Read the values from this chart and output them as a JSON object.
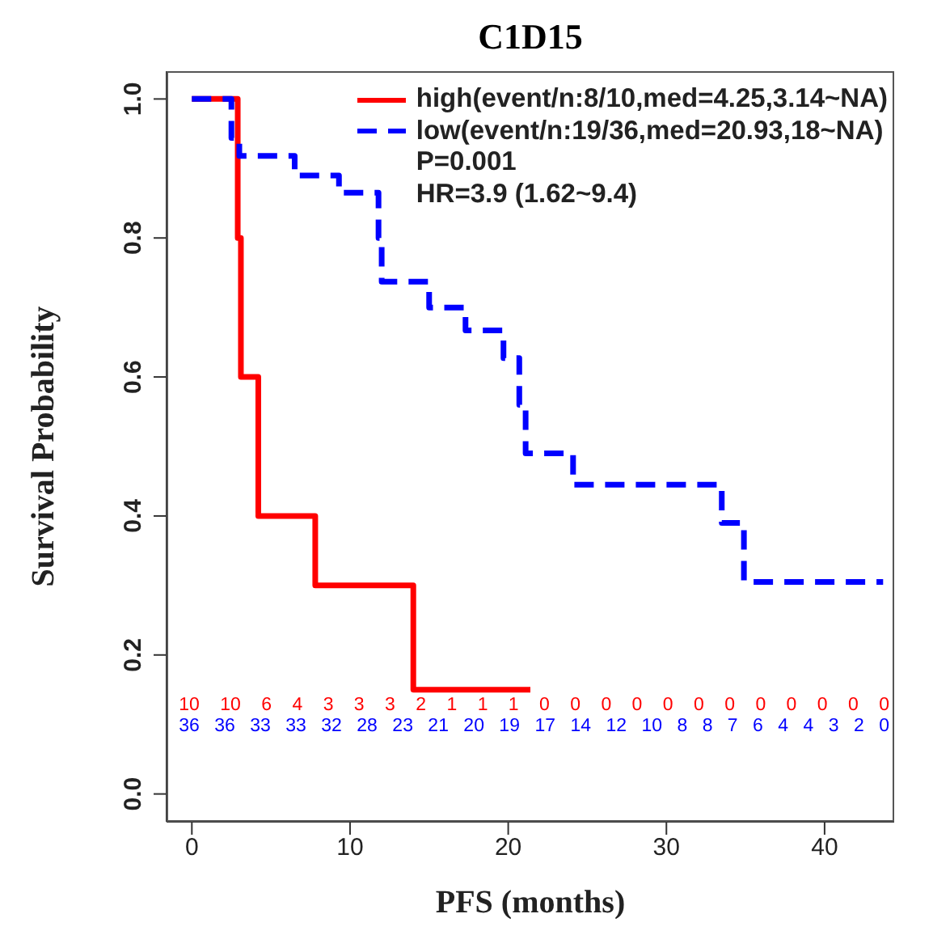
{
  "chart_data": {
    "type": "step",
    "title": "C1D15",
    "xlabel": "PFS (months)",
    "ylabel": "Survival Probability",
    "xlim": [
      -1.6,
      44.4
    ],
    "ylim": [
      -0.04,
      1.04
    ],
    "xticks": [
      0,
      10,
      20,
      30,
      40
    ],
    "yticks": [
      {
        "value": 0,
        "label": "0.0"
      },
      0.2,
      0.4,
      0.6,
      0.8,
      {
        "value": 1,
        "label": "1.0"
      }
    ],
    "grid": false,
    "legend": "top right",
    "marker": "none",
    "series": [
      {
        "name": "high(event/n:8/10,med=4.25,3.14~NA)",
        "color": "#ff0000",
        "line_style": "solid",
        "x": [
          0,
          2.9,
          3.1,
          4.2,
          7.8,
          14.0,
          21.4
        ],
        "values": [
          1,
          0.8,
          0.6,
          0.4,
          0.3,
          0.15,
          0.15
        ]
      },
      {
        "name": "low(event/n:19/36,med=20.93,18~NA)",
        "color": "#0000ff",
        "line_style": "dashed",
        "x": [
          0,
          2.5,
          3.0,
          6.5,
          9.3,
          11.8,
          12.0,
          15.0,
          17.3,
          19.7,
          20.7,
          21.1,
          24.1,
          33.5,
          34.9,
          43.7
        ],
        "values": [
          1,
          0.944,
          0.918,
          0.89,
          0.865,
          0.8,
          0.737,
          0.7,
          0.667,
          0.627,
          0.56,
          0.49,
          0.445,
          0.39,
          0.305,
          0.305
        ]
      }
    ],
    "annotations": [
      "P=0.001",
      "HR=3.9 (1.62~9.4)",
      "10 10 6 4 3 3 3 2 1 1 1 0 0 0 0 0 0 0 0 0 0 0 0",
      "36 36 33 33 32 28 23 21 20 19 17 14 12 10 8 8 7 6 4 4 3 2 0"
    ]
  }
}
